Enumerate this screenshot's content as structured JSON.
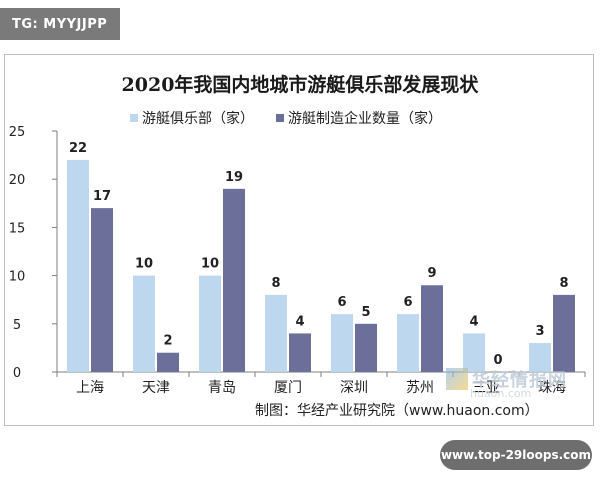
{
  "badge": "TG: MYYJJPP",
  "source_note": "制图：华经产业研究院（www.huaon.com）",
  "watermark": {
    "text": "华经情报网",
    "sub": "huaon.com"
  },
  "footer_pill": "www.top-29loops.com",
  "colors": {
    "series1": "#bdd7ee",
    "series2": "#6b6f99",
    "axis": "#7f7f7f"
  },
  "chart_data": {
    "type": "bar",
    "title": "2020年我国内地城市游艇俱乐部发展现状",
    "categories": [
      "上海",
      "天津",
      "青岛",
      "厦门",
      "深圳",
      "苏州",
      "三亚",
      "珠海"
    ],
    "series": [
      {
        "name": "游艇俱乐部（家）",
        "values": [
          22,
          10,
          10,
          8,
          6,
          6,
          4,
          3
        ]
      },
      {
        "name": "游艇制造企业数量（家）",
        "values": [
          17,
          2,
          19,
          4,
          5,
          9,
          0,
          8
        ]
      }
    ],
    "ylim": [
      0,
      25
    ],
    "yticks": [
      0,
      5,
      10,
      15,
      20,
      25
    ],
    "xlabel": "",
    "ylabel": "",
    "grid": false,
    "legend": "top"
  }
}
